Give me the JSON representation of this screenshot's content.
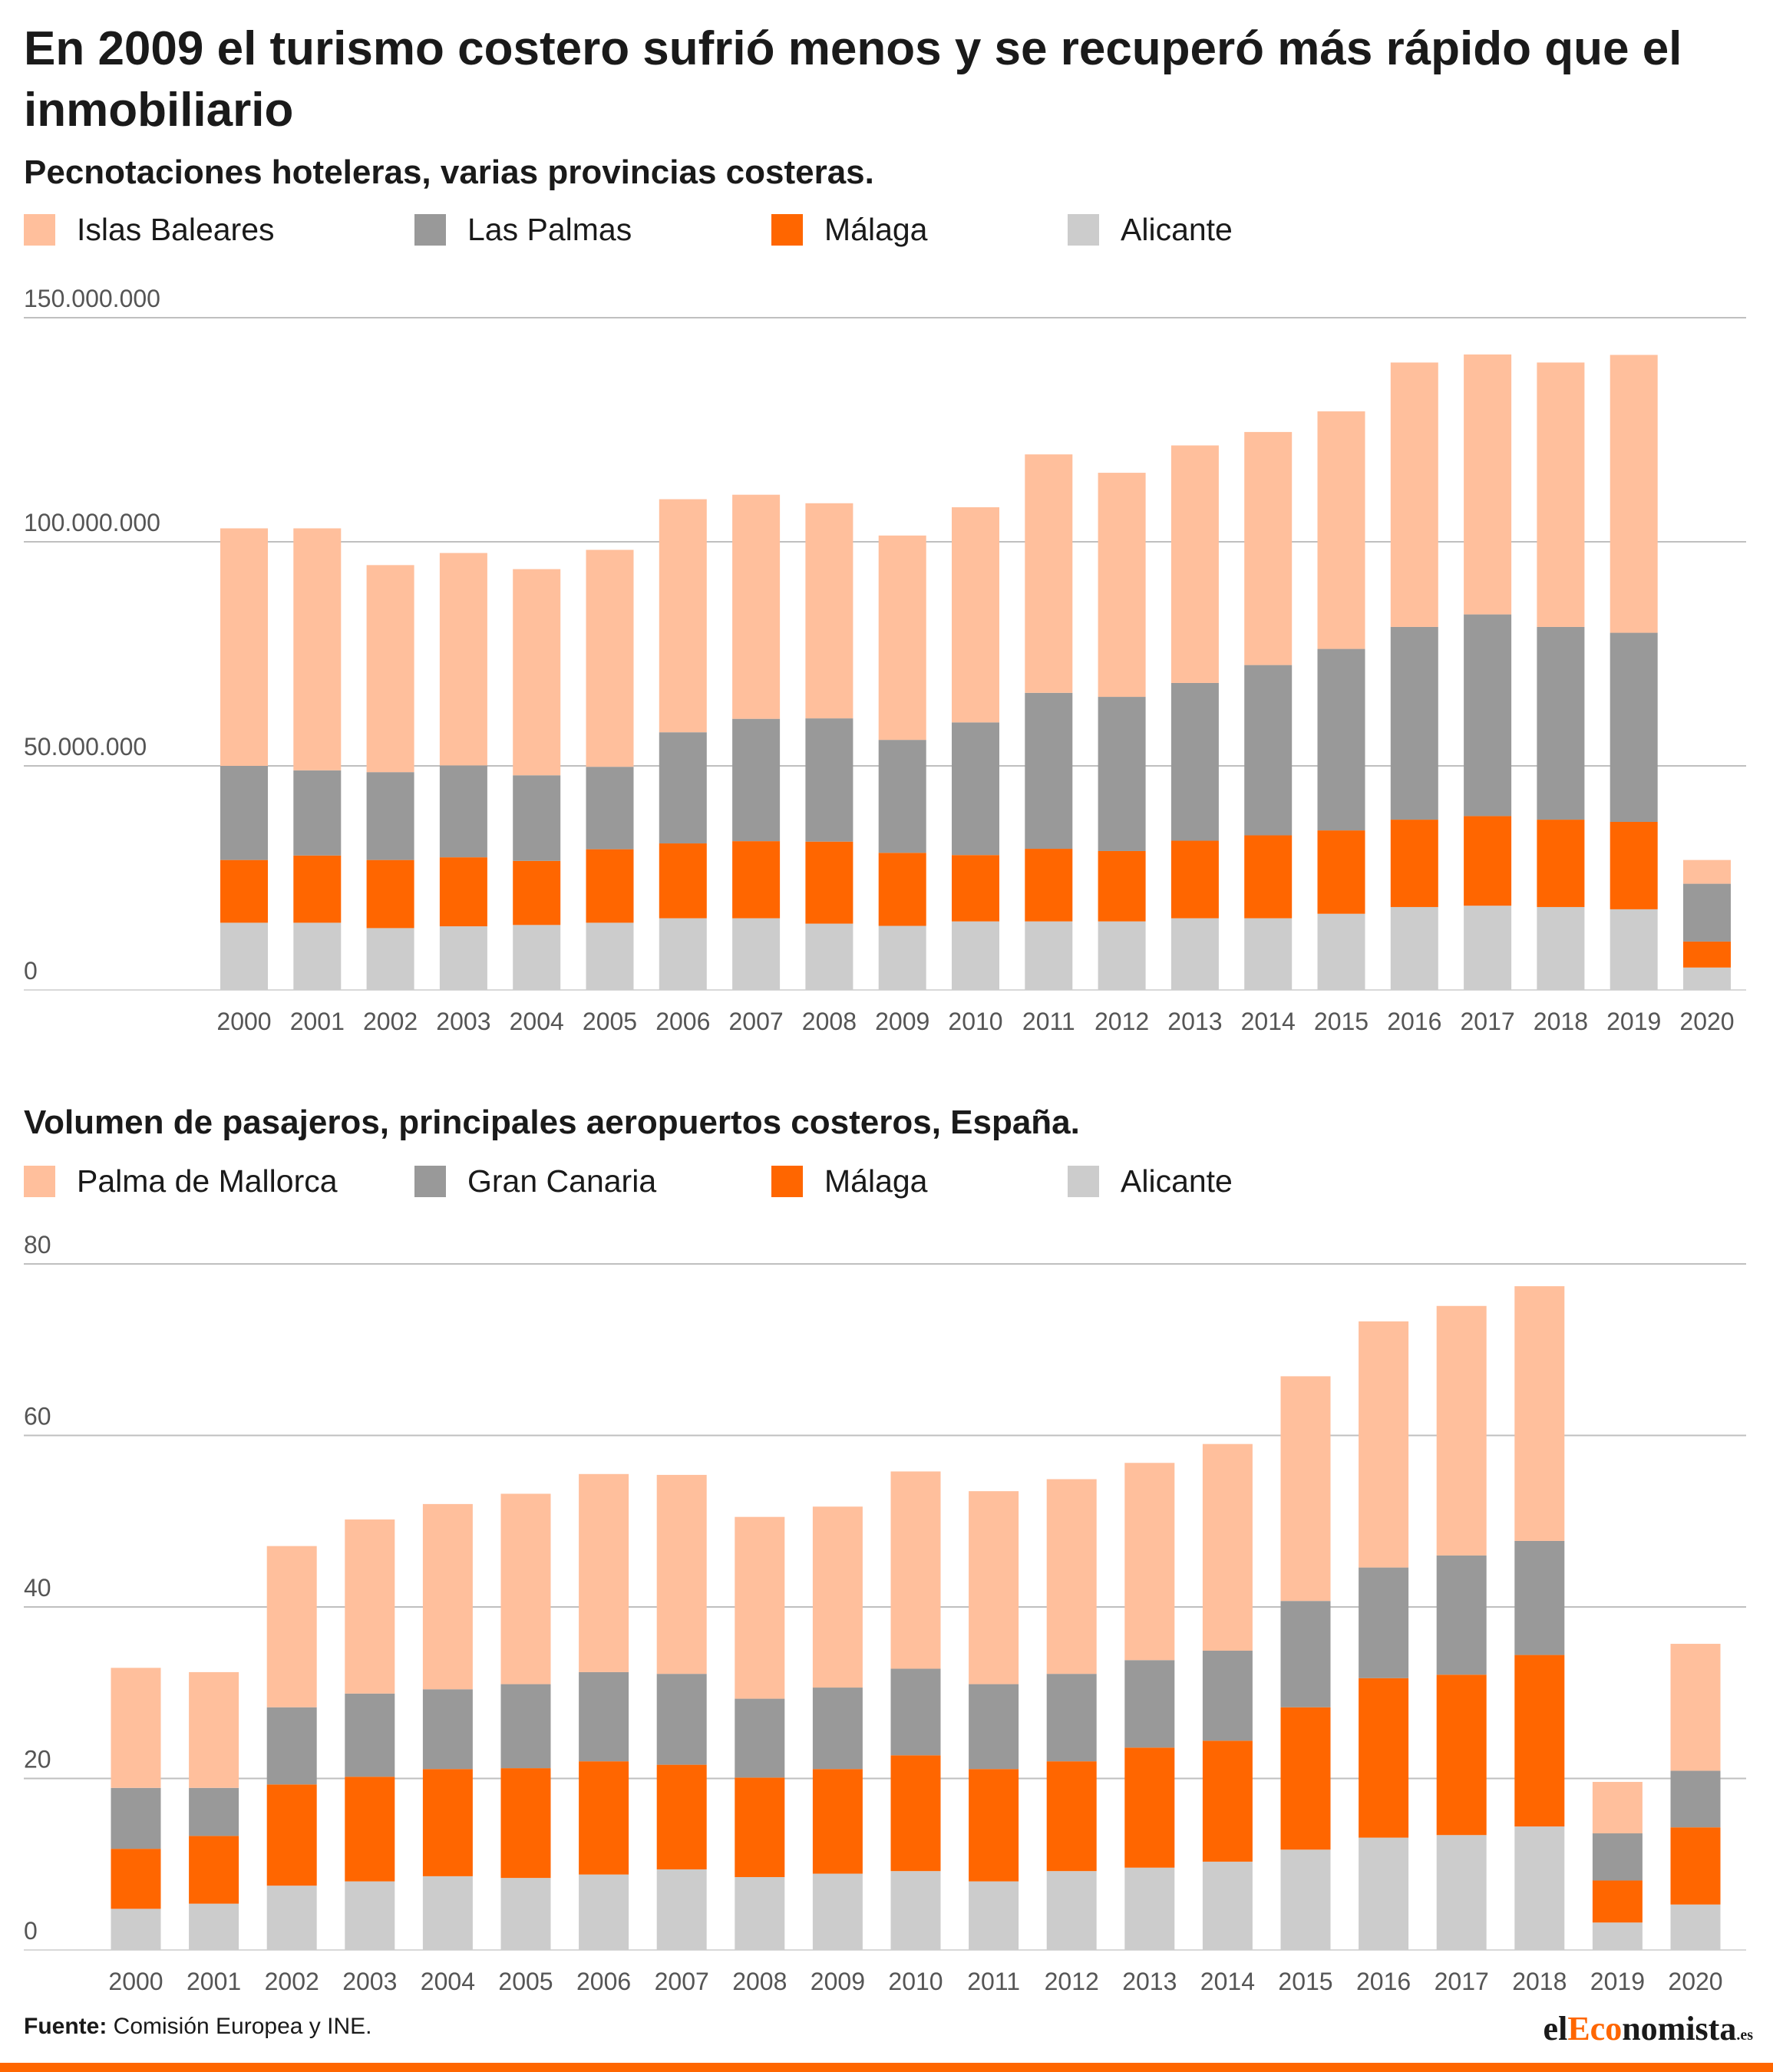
{
  "title": "En 2009 el turismo costero sufrió menos y se recuperó más rápido que el inmobiliario",
  "colors": {
    "series1": "#ffbf9c",
    "series2": "#999999",
    "series3": "#ff6600",
    "series4": "#cccccc",
    "grid": "#bfbfbf",
    "axis": "#d9d9d9",
    "tick_text": "#555555",
    "accent": "#ff6600"
  },
  "chart_data": [
    {
      "type": "bar",
      "stacked": true,
      "title": "Pecnotaciones hoteleras, varias provincias costeras.",
      "categories": [
        "2000",
        "2001",
        "2002",
        "2003",
        "2004",
        "2005",
        "2006",
        "2007",
        "2008",
        "2009",
        "2010",
        "2011",
        "2012",
        "2013",
        "2014",
        "2015",
        "2016",
        "2017",
        "2018",
        "2019",
        "2020"
      ],
      "y_ticks": [
        0,
        50000000,
        100000000,
        150000000
      ],
      "y_tick_labels": [
        "0",
        "50.000.000",
        "100.000.000",
        "150.000.000"
      ],
      "ylim": [
        0,
        150000000
      ],
      "grid": true,
      "legend_position": "top-left",
      "series": [
        {
          "name": "Alicante",
          "values": [
            15000000,
            15000000,
            13800000,
            14200000,
            14500000,
            15000000,
            16000000,
            16000000,
            14800000,
            14300000,
            15300000,
            15300000,
            15300000,
            16000000,
            16000000,
            17000000,
            18500000,
            18800000,
            18500000,
            18000000,
            5000000
          ]
        },
        {
          "name": "Málaga",
          "values": [
            14000000,
            15000000,
            15200000,
            15400000,
            14300000,
            16400000,
            16700000,
            17200000,
            18300000,
            16300000,
            14800000,
            16200000,
            15700000,
            17300000,
            18500000,
            18600000,
            19500000,
            20000000,
            19500000,
            19500000,
            5800000
          ]
        },
        {
          "name": "Las Palmas",
          "values": [
            21000000,
            19000000,
            19600000,
            20500000,
            19100000,
            18400000,
            24800000,
            27300000,
            27500000,
            25200000,
            29600000,
            34800000,
            34400000,
            35200000,
            38000000,
            40500000,
            43000000,
            45000000,
            43000000,
            42200000,
            12900000
          ]
        },
        {
          "name": "Islas Baleares",
          "values": [
            53000000,
            54000000,
            46200000,
            47400000,
            46000000,
            48400000,
            52000000,
            50000000,
            48000000,
            45600000,
            48000000,
            53200000,
            50000000,
            53000000,
            52000000,
            53000000,
            59000000,
            58000000,
            59000000,
            62000000,
            5300000
          ]
        }
      ]
    },
    {
      "type": "bar",
      "stacked": true,
      "title": "Volumen de pasajeros, principales aeropuertos costeros, España.",
      "categories": [
        "2000",
        "2001",
        "2002",
        "2003",
        "2004",
        "2005",
        "2006",
        "2007",
        "2008",
        "2009",
        "2010",
        "2011",
        "2012",
        "2013",
        "2014",
        "2015",
        "2016",
        "2017",
        "2018",
        "2019",
        "2020"
      ],
      "y_ticks": [
        0,
        20,
        40,
        60,
        80
      ],
      "y_tick_labels": [
        "0",
        "20",
        "40",
        "60",
        "80"
      ],
      "ylim": [
        0,
        80
      ],
      "grid": true,
      "legend_position": "top-left",
      "series": [
        {
          "name": "Alicante",
          "values": [
            4.8,
            5.4,
            7.5,
            8.0,
            8.6,
            8.4,
            8.8,
            9.4,
            8.5,
            8.9,
            9.2,
            8.0,
            9.2,
            9.6,
            10.3,
            11.7,
            13.1,
            13.4,
            14.4,
            3.2,
            5.3
          ]
        },
        {
          "name": "Málaga",
          "values": [
            7.0,
            7.9,
            11.8,
            12.2,
            12.5,
            12.8,
            13.2,
            12.2,
            11.6,
            12.2,
            13.5,
            13.1,
            12.8,
            14.0,
            14.1,
            16.6,
            18.6,
            18.7,
            20.0,
            4.9,
            9.0
          ]
        },
        {
          "name": "Gran Canaria",
          "values": [
            7.1,
            5.6,
            9.0,
            9.7,
            9.3,
            9.8,
            10.4,
            10.6,
            9.2,
            9.5,
            10.1,
            9.9,
            10.2,
            10.2,
            10.5,
            12.4,
            12.9,
            13.9,
            13.3,
            5.5,
            6.6
          ]
        },
        {
          "name": "Palma de Mallorca",
          "values": [
            14.0,
            13.5,
            18.8,
            20.3,
            21.6,
            22.2,
            23.1,
            23.2,
            21.2,
            21.1,
            23.0,
            22.5,
            22.7,
            23.0,
            24.1,
            26.2,
            28.7,
            29.1,
            29.7,
            6.0,
            14.8
          ]
        }
      ]
    }
  ],
  "legend1": [
    {
      "label": "Islas Baleares"
    },
    {
      "label": "Las Palmas"
    },
    {
      "label": "Málaga"
    },
    {
      "label": "Alicante"
    }
  ],
  "legend2": [
    {
      "label": "Palma de Mallorca"
    },
    {
      "label": "Gran Canaria"
    },
    {
      "label": "Málaga"
    },
    {
      "label": "Alicante"
    }
  ],
  "footer": {
    "source_label": "Fuente:",
    "source_text": " Comisión Europea y INE.",
    "logo_pre": "el",
    "logo_accent": "Eco",
    "logo_post": "nomista",
    "logo_tld": ".es"
  }
}
